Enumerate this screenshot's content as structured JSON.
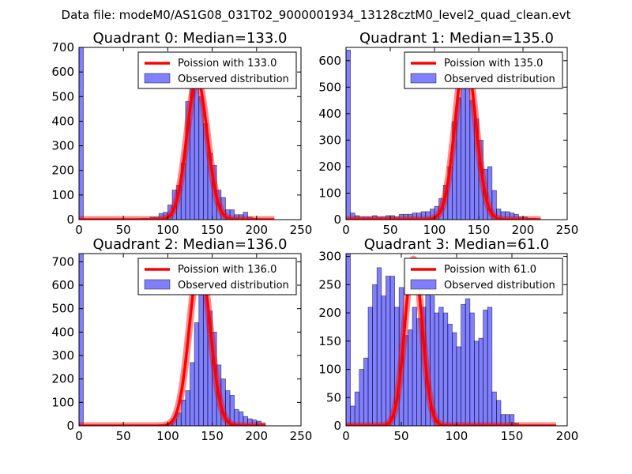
{
  "suptitle": "Data file: modeM0/AS1G08_031T02_9000001934_13128cztM0_level2_quad_clean.evt",
  "colors": {
    "bar": "#0000ff",
    "curve": "#ff0000",
    "frame": "#000000"
  },
  "chart_data": [
    {
      "type": "bar",
      "title": "Quadrant 0: Median=133.0",
      "xlim": [
        0,
        250
      ],
      "ylim": [
        0,
        700
      ],
      "xticks": [
        "0",
        "50",
        "100",
        "150",
        "200",
        "250"
      ],
      "yticks": [
        "0",
        "100",
        "200",
        "300",
        "400",
        "500",
        "600",
        "700"
      ],
      "legend": [
        "Poission with 133.0",
        "Observed distribution"
      ],
      "legend_position": "top-right",
      "bin_width": 5,
      "bin_starts": [
        0,
        70,
        75,
        80,
        85,
        90,
        95,
        100,
        105,
        110,
        115,
        120,
        125,
        130,
        135,
        140,
        145,
        150,
        155,
        160,
        165,
        170,
        175,
        180,
        185,
        190,
        195
      ],
      "bin_counts": [
        700,
        5,
        5,
        10,
        10,
        25,
        30,
        60,
        120,
        140,
        230,
        480,
        550,
        560,
        500,
        390,
        270,
        220,
        120,
        90,
        40,
        40,
        20,
        20,
        30,
        10,
        5
      ],
      "poisson_mean": 133.0,
      "poisson_peak": 570,
      "poisson_xrange": [
        0,
        220
      ]
    },
    {
      "type": "bar",
      "title": "Quadrant 1: Median=135.0",
      "xlim": [
        0,
        250
      ],
      "ylim": [
        0,
        650
      ],
      "xticks": [
        "0",
        "50",
        "100",
        "150",
        "200",
        "250"
      ],
      "yticks": [
        "0",
        "100",
        "200",
        "300",
        "400",
        "500",
        "600"
      ],
      "legend": [
        "Poission with 135.0",
        "Observed distribution"
      ],
      "legend_position": "top-right",
      "bin_width": 5,
      "bin_starts": [
        0,
        5,
        10,
        15,
        20,
        25,
        30,
        35,
        40,
        45,
        50,
        55,
        60,
        65,
        70,
        75,
        80,
        85,
        90,
        95,
        100,
        105,
        110,
        115,
        120,
        125,
        130,
        135,
        140,
        145,
        150,
        155,
        160,
        165,
        170,
        175,
        180,
        185,
        190,
        195,
        200,
        205,
        210
      ],
      "bin_counts": [
        640,
        25,
        15,
        10,
        10,
        10,
        15,
        10,
        10,
        15,
        15,
        10,
        20,
        20,
        20,
        25,
        25,
        30,
        30,
        40,
        50,
        80,
        130,
        200,
        370,
        460,
        590,
        610,
        450,
        380,
        300,
        190,
        200,
        110,
        40,
        30,
        30,
        25,
        20,
        10,
        10,
        5,
        5
      ],
      "poisson_mean": 135.0,
      "poisson_peak": 615,
      "poisson_xrange": [
        0,
        220
      ]
    },
    {
      "type": "bar",
      "title": "Quadrant 2: Median=136.0",
      "xlim": [
        0,
        250
      ],
      "ylim": [
        0,
        735
      ],
      "xticks": [
        "0",
        "50",
        "100",
        "150",
        "200",
        "250"
      ],
      "yticks": [
        "0",
        "100",
        "200",
        "300",
        "400",
        "500",
        "600",
        "700"
      ],
      "legend": [
        "Poission with 136.0",
        "Observed distribution"
      ],
      "legend_position": "top-right",
      "bin_width": 5,
      "bin_starts": [
        0,
        100,
        105,
        110,
        115,
        120,
        125,
        130,
        135,
        140,
        145,
        150,
        155,
        160,
        165,
        170,
        175,
        180,
        185,
        190,
        195,
        200,
        205
      ],
      "bin_counts": [
        735,
        10,
        30,
        55,
        110,
        150,
        270,
        440,
        650,
        620,
        490,
        400,
        260,
        200,
        150,
        130,
        70,
        60,
        40,
        30,
        25,
        20,
        10
      ],
      "poisson_mean": 136.0,
      "poisson_peak": 700,
      "poisson_xrange": [
        0,
        210
      ]
    },
    {
      "type": "bar",
      "title": "Quadrant 3: Median=61.0",
      "xlim": [
        0,
        200
      ],
      "ylim": [
        0,
        305
      ],
      "xticks": [
        "0",
        "50",
        "100",
        "150",
        "200"
      ],
      "yticks": [
        "0",
        "50",
        "100",
        "150",
        "200",
        "250",
        "300"
      ],
      "legend": [
        "Poission with 61.0",
        "Observed distribution"
      ],
      "legend_position": "top-right",
      "bin_width": 4,
      "bin_starts": [
        0,
        4,
        8,
        12,
        16,
        20,
        24,
        28,
        32,
        36,
        40,
        44,
        48,
        52,
        56,
        60,
        64,
        68,
        72,
        76,
        80,
        84,
        88,
        92,
        96,
        100,
        104,
        108,
        112,
        116,
        120,
        124,
        128,
        132,
        136,
        140,
        144,
        148,
        152
      ],
      "bin_counts": [
        305,
        35,
        60,
        100,
        120,
        210,
        250,
        280,
        230,
        265,
        265,
        210,
        245,
        160,
        170,
        210,
        190,
        210,
        280,
        230,
        200,
        210,
        200,
        180,
        165,
        140,
        215,
        225,
        200,
        150,
        155,
        205,
        210,
        60,
        45,
        20,
        20,
        20,
        5
      ],
      "poisson_mean": 61.0,
      "poisson_peak": 295,
      "poisson_xrange": [
        0,
        190
      ]
    }
  ]
}
